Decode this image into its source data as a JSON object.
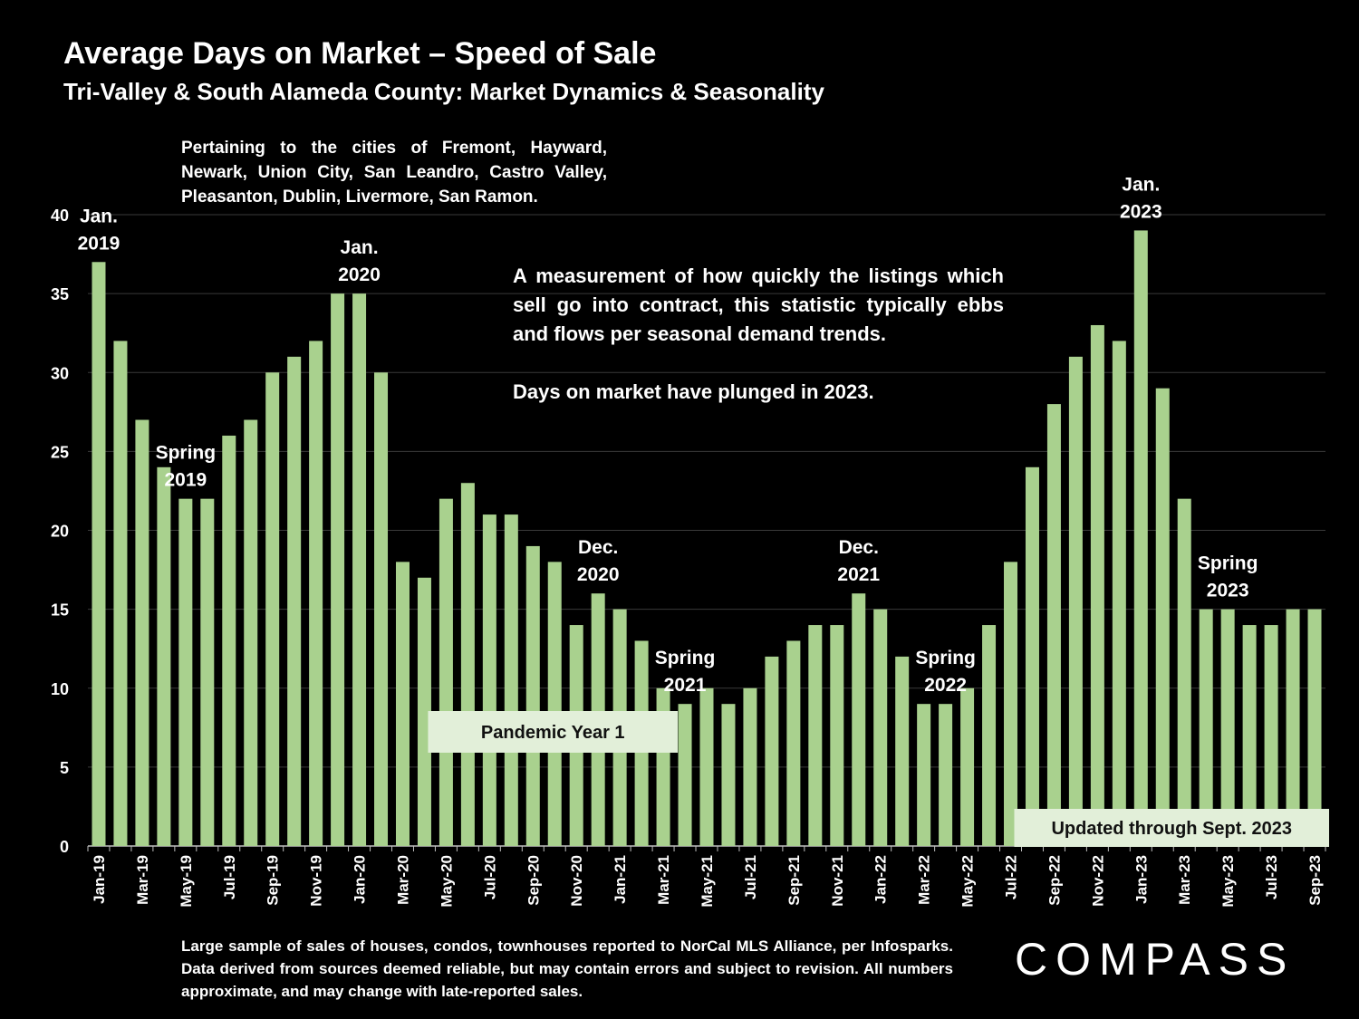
{
  "title": "Average Days on Market – Speed of Sale",
  "subtitle": "Tri-Valley & South Alameda County: Market Dynamics & Seasonality",
  "note": "Pertaining to the cities of Fremont, Hayward, Newark, Union City, San Leandro, Castro Valley, Pleasanton, Dublin, Livermore, San Ramon.",
  "description": "A measurement of how quickly the listings which sell go into contract, this statistic typically ebbs and flows per seasonal demand trends.",
  "description2": "Days on market have plunged in 2023.",
  "footer": "Large sample of sales of houses, condos, townhouses reported to NorCal MLS Alliance, per Infosparks. Data derived from sources deemed reliable, but may contain errors and subject to revision. All numbers approximate, and may change with late-reported sales.",
  "logo": "COMPASS",
  "colors": {
    "bar": "#a9d18e",
    "grid": "#3a3a3a",
    "background": "#000000",
    "box": "#e2efd9"
  },
  "chart_data": {
    "type": "bar",
    "ylim": [
      0,
      40
    ],
    "yticks": [
      0,
      5,
      10,
      15,
      20,
      25,
      30,
      35,
      40
    ],
    "grid": true,
    "categories": [
      "Jan-19",
      "Feb-19",
      "Mar-19",
      "Apr-19",
      "May-19",
      "Jun-19",
      "Jul-19",
      "Aug-19",
      "Sep-19",
      "Oct-19",
      "Nov-19",
      "Dec-19",
      "Jan-20",
      "Feb-20",
      "Mar-20",
      "Apr-20",
      "May-20",
      "Jun-20",
      "Jul-20",
      "Aug-20",
      "Sep-20",
      "Oct-20",
      "Nov-20",
      "Dec-20",
      "Jan-21",
      "Feb-21",
      "Mar-21",
      "Apr-21",
      "May-21",
      "Jun-21",
      "Jul-21",
      "Aug-21",
      "Sep-21",
      "Oct-21",
      "Nov-21",
      "Dec-21",
      "Jan-22",
      "Feb-22",
      "Mar-22",
      "Apr-22",
      "May-22",
      "Jun-22",
      "Jul-22",
      "Aug-22",
      "Sep-22",
      "Oct-22",
      "Nov-22",
      "Dec-22",
      "Jan-23",
      "Feb-23",
      "Mar-23",
      "Apr-23",
      "May-23",
      "Jun-23",
      "Jul-23",
      "Aug-23",
      "Sep-23"
    ],
    "tick_labels": [
      "Jan-19",
      "",
      "Mar-19",
      "",
      "May-19",
      "",
      "Jul-19",
      "",
      "Sep-19",
      "",
      "Nov-19",
      "",
      "Jan-20",
      "",
      "Mar-20",
      "",
      "May-20",
      "",
      "Jul-20",
      "",
      "Sep-20",
      "",
      "Nov-20",
      "",
      "Jan-21",
      "",
      "Mar-21",
      "",
      "May-21",
      "",
      "Jul-21",
      "",
      "Sep-21",
      "",
      "Nov-21",
      "",
      "Jan-22",
      "",
      "Mar-22",
      "",
      "May-22",
      "",
      "Jul-22",
      "",
      "Sep-22",
      "",
      "Nov-22",
      "",
      "Jan-23",
      "",
      "Mar-23",
      "",
      "May-23",
      "",
      "Jul-23",
      "",
      "Sep-23"
    ],
    "values": [
      37,
      32,
      27,
      24,
      22,
      22,
      26,
      27,
      30,
      31,
      32,
      35,
      35,
      30,
      18,
      17,
      22,
      23,
      21,
      21,
      19,
      18,
      14,
      16,
      15,
      13,
      10,
      9,
      10,
      9,
      10,
      12,
      13,
      14,
      14,
      16,
      15,
      12,
      9,
      9,
      10,
      14,
      18,
      24,
      28,
      31,
      33,
      32,
      39,
      29,
      22,
      15,
      15,
      14,
      14,
      15,
      15
    ],
    "annotations": [
      {
        "lines": [
          "Jan.",
          "2019"
        ],
        "index": 0
      },
      {
        "lines": [
          "Spring",
          "2019"
        ],
        "index": 4
      },
      {
        "lines": [
          "Jan.",
          "2020"
        ],
        "index": 12
      },
      {
        "lines": [
          "Dec.",
          "2020"
        ],
        "index": 23
      },
      {
        "lines": [
          "Spring",
          "2021"
        ],
        "index": 27
      },
      {
        "lines": [
          "Dec.",
          "2021"
        ],
        "index": 35
      },
      {
        "lines": [
          "Spring",
          "2022"
        ],
        "index": 39
      },
      {
        "lines": [
          "Jan.",
          "2023"
        ],
        "index": 48
      },
      {
        "lines": [
          "Spring",
          "2023"
        ],
        "index": 52
      }
    ],
    "boxes": [
      {
        "text": "Pandemic Year 1",
        "from_index": 16,
        "to_index": 26
      },
      {
        "text": "Updated through Sept. 2023",
        "from_index": 43,
        "to_index": 56
      }
    ]
  }
}
